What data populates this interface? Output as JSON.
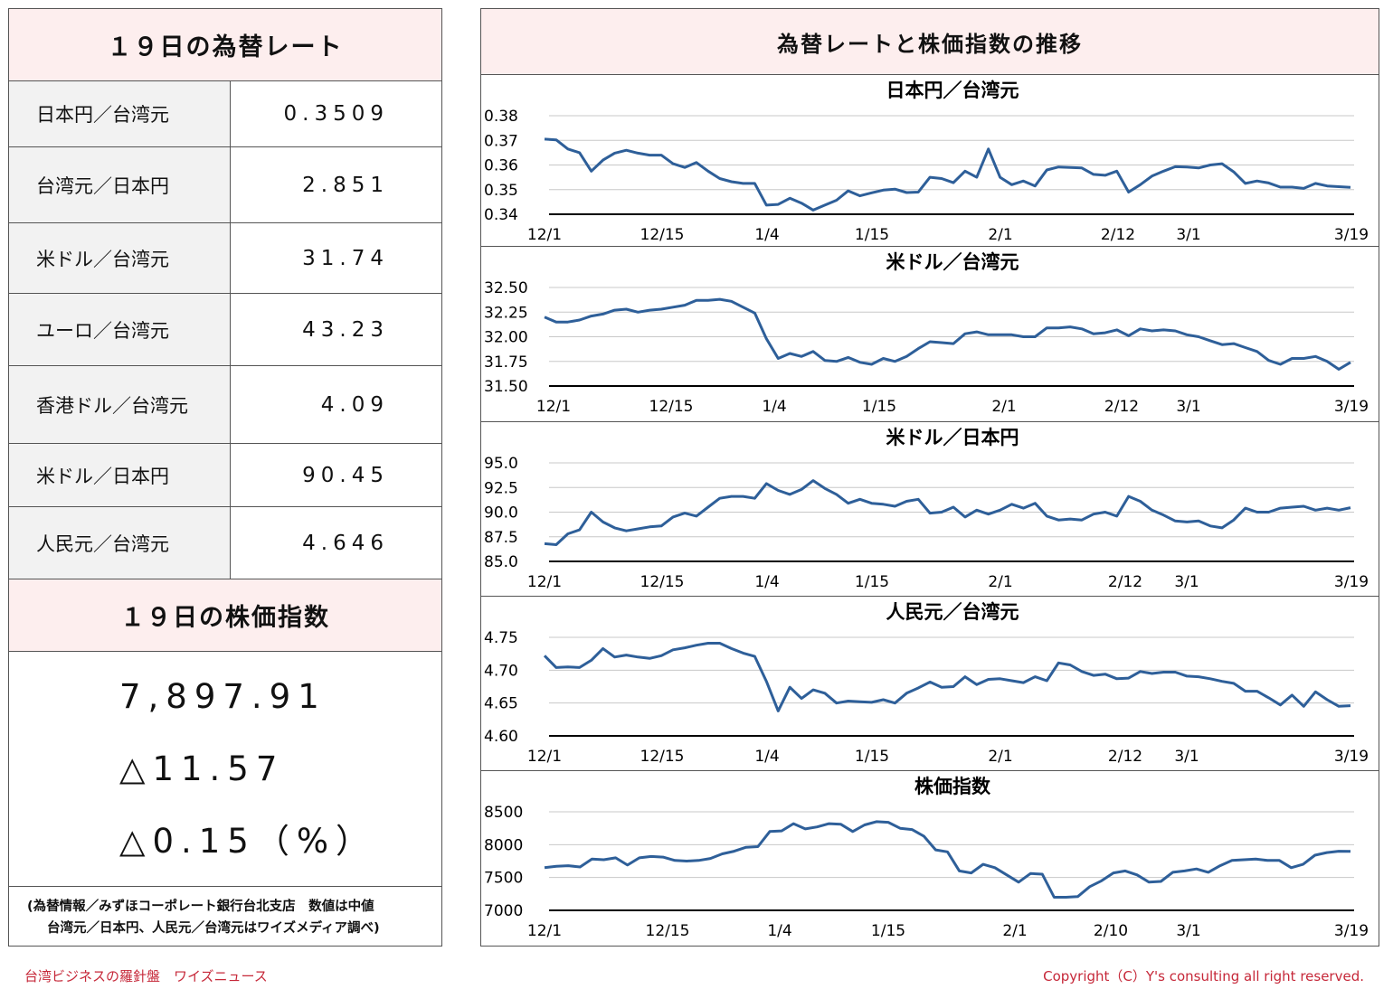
{
  "left": {
    "rates_title": "１９日の為替レート",
    "rates": [
      {
        "label": "日本円／台湾元",
        "value": "0.3509"
      },
      {
        "label": "台湾元／日本円",
        "value": "2.851"
      },
      {
        "label": "米ドル／台湾元",
        "value": "31.74"
      },
      {
        "label": "ユーロ／台湾元",
        "value": "43.23"
      },
      {
        "label": "香港ドル／台湾元",
        "value": "4.09"
      },
      {
        "label": "米ドル／日本円",
        "value": "90.45"
      },
      {
        "label": "人民元／台湾元",
        "value": "4.646"
      }
    ],
    "stock_title": "１９日の株価指数",
    "stock_value": "7,897.91",
    "stock_change": "△11.57",
    "stock_change_pct": "△0.15（%）",
    "note_line1": "(為替情報／みずほコーポレート銀行台北支店　数値は中値",
    "note_line2": "台湾元／日本円、人民元／台湾元はワイズメディア調べ)"
  },
  "right": {
    "title": "為替レートと株価指数の推移"
  },
  "footer": {
    "left": "台湾ビジネスの羅針盤　ワイズニュース",
    "right": "Copyright（C）Y's consulting all right reserved."
  },
  "colors": {
    "line": "#2e5f99",
    "header_bg": "#fdeeee",
    "label_bg": "#f2f2f2",
    "footer_text": "#c62839"
  },
  "chart_data": [
    {
      "type": "line",
      "title": "日本円／台湾元",
      "xticks": [
        "12/1",
        "12/15",
        "1/4",
        "1/15",
        "2/1",
        "2/12",
        "3/1",
        "3/19"
      ],
      "yticks": [
        "0.38",
        "0.37",
        "0.36",
        "0.35",
        "0.34"
      ],
      "ylim": [
        0.34,
        0.38
      ],
      "values": [
        0.3705,
        0.3702,
        0.3665,
        0.365,
        0.3575,
        0.362,
        0.3648,
        0.366,
        0.3648,
        0.364,
        0.364,
        0.3605,
        0.359,
        0.361,
        0.3575,
        0.3545,
        0.3532,
        0.3525,
        0.3525,
        0.3437,
        0.344,
        0.3465,
        0.3445,
        0.3417,
        0.3437,
        0.3457,
        0.3495,
        0.3475,
        0.3487,
        0.3498,
        0.3502,
        0.3488,
        0.349,
        0.355,
        0.3545,
        0.3528,
        0.3575,
        0.355,
        0.3665,
        0.355,
        0.352,
        0.3535,
        0.3515,
        0.358,
        0.3592,
        0.359,
        0.3588,
        0.3562,
        0.3558,
        0.3575,
        0.349,
        0.352,
        0.3555,
        0.3575,
        0.3593,
        0.3592,
        0.3588,
        0.36,
        0.3605,
        0.3572,
        0.3525,
        0.3535,
        0.3527,
        0.351,
        0.351,
        0.3505,
        0.3525,
        0.3515,
        0.3512,
        0.3509
      ]
    },
    {
      "type": "line",
      "title": "米ドル／台湾元",
      "xticks": [
        "12/1",
        "12/15",
        "1/4",
        "1/15",
        "2/1",
        "2/12",
        "3/1",
        "3/19"
      ],
      "yticks": [
        "32.50",
        "32.25",
        "32.00",
        "31.75",
        "31.50"
      ],
      "ylim": [
        31.5,
        32.5
      ],
      "values": [
        32.2,
        32.15,
        32.15,
        32.17,
        32.21,
        32.23,
        32.27,
        32.28,
        32.25,
        32.27,
        32.28,
        32.3,
        32.32,
        32.37,
        32.37,
        32.38,
        32.36,
        32.3,
        32.24,
        31.98,
        31.78,
        31.83,
        31.8,
        31.85,
        31.76,
        31.75,
        31.79,
        31.74,
        31.72,
        31.78,
        31.75,
        31.8,
        31.88,
        31.95,
        31.94,
        31.93,
        32.03,
        32.05,
        32.02,
        32.02,
        32.02,
        32.0,
        32.0,
        32.09,
        32.09,
        32.1,
        32.08,
        32.03,
        32.04,
        32.07,
        32.01,
        32.08,
        32.06,
        32.07,
        32.06,
        32.02,
        32.0,
        31.96,
        31.92,
        31.93,
        31.89,
        31.85,
        31.76,
        31.72,
        31.78,
        31.78,
        31.8,
        31.75,
        31.67,
        31.74
      ]
    },
    {
      "type": "line",
      "title": "米ドル／日本円",
      "xticks": [
        "12/1",
        "12/15",
        "1/4",
        "1/15",
        "2/1",
        "2/12",
        "3/1",
        "3/19"
      ],
      "yticks": [
        "95.0",
        "92.5",
        "90.0",
        "87.5",
        "85.0"
      ],
      "ylim": [
        85,
        95
      ],
      "values": [
        86.8,
        86.7,
        87.8,
        88.2,
        90.0,
        89.0,
        88.4,
        88.1,
        88.3,
        88.5,
        88.6,
        89.5,
        89.9,
        89.6,
        90.5,
        91.4,
        91.6,
        91.6,
        91.4,
        92.9,
        92.2,
        91.8,
        92.3,
        93.2,
        92.4,
        91.8,
        90.9,
        91.3,
        90.9,
        90.8,
        90.6,
        91.1,
        91.3,
        89.9,
        90.0,
        90.5,
        89.5,
        90.2,
        89.8,
        90.2,
        90.8,
        90.4,
        90.9,
        89.6,
        89.2,
        89.3,
        89.2,
        89.8,
        90.0,
        89.6,
        91.6,
        91.1,
        90.2,
        89.7,
        89.1,
        89.0,
        89.1,
        88.6,
        88.4,
        89.2,
        90.4,
        90.0,
        90.0,
        90.4,
        90.5,
        90.6,
        90.2,
        90.4,
        90.2,
        90.45
      ]
    },
    {
      "type": "line",
      "title": "人民元／台湾元",
      "xticks": [
        "12/1",
        "12/15",
        "1/4",
        "1/15",
        "2/1",
        "2/12",
        "3/1",
        "3/19"
      ],
      "yticks": [
        "4.75",
        "4.70",
        "4.65",
        "4.60"
      ],
      "ylim": [
        4.6,
        4.75
      ],
      "values": [
        4.722,
        4.704,
        4.705,
        4.704,
        4.715,
        4.733,
        4.72,
        4.723,
        4.72,
        4.718,
        4.722,
        4.731,
        4.734,
        4.738,
        4.741,
        4.741,
        4.733,
        4.726,
        4.721,
        4.683,
        4.638,
        4.674,
        4.657,
        4.67,
        4.665,
        4.65,
        4.653,
        4.652,
        4.651,
        4.655,
        4.65,
        4.665,
        4.673,
        4.682,
        4.674,
        4.675,
        4.69,
        4.678,
        4.686,
        4.687,
        4.684,
        4.681,
        4.69,
        4.684,
        4.711,
        4.708,
        4.698,
        4.692,
        4.694,
        4.687,
        4.688,
        4.698,
        4.695,
        4.697,
        4.697,
        4.691,
        4.69,
        4.687,
        4.683,
        4.68,
        4.668,
        4.668,
        4.658,
        4.647,
        4.662,
        4.645,
        4.667,
        4.655,
        4.645,
        4.646
      ]
    },
    {
      "type": "line",
      "title": "株価指数",
      "xticks": [
        "12/1",
        "12/15",
        "1/4",
        "1/15",
        "2/1",
        "2/10",
        "3/1",
        "3/19"
      ],
      "yticks": [
        "8500",
        "8000",
        "7500",
        "7000"
      ],
      "ylim": [
        7000,
        8500
      ],
      "values": [
        7650,
        7670,
        7680,
        7660,
        7780,
        7770,
        7800,
        7690,
        7800,
        7820,
        7810,
        7760,
        7750,
        7760,
        7790,
        7860,
        7900,
        7960,
        7970,
        8200,
        8210,
        8320,
        8240,
        8270,
        8320,
        8310,
        8200,
        8300,
        8350,
        8340,
        8250,
        8230,
        8130,
        7920,
        7890,
        7600,
        7570,
        7700,
        7650,
        7540,
        7430,
        7560,
        7550,
        7200,
        7200,
        7210,
        7360,
        7450,
        7570,
        7600,
        7540,
        7430,
        7440,
        7580,
        7600,
        7630,
        7580,
        7680,
        7760,
        7770,
        7780,
        7760,
        7760,
        7650,
        7700,
        7840,
        7880,
        7900,
        7897.91
      ]
    }
  ]
}
